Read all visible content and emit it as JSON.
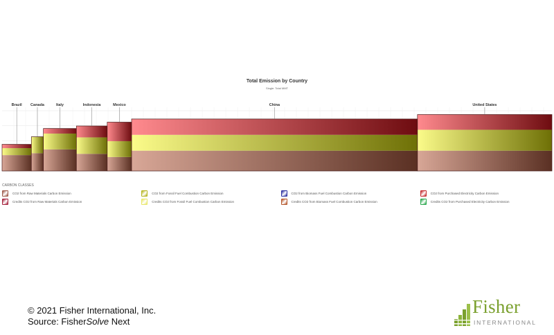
{
  "chart_data": {
    "type": "bar",
    "variant": "variable-width stacked (marimekko)",
    "title": "Total Emission by Country",
    "subtitle": "Single: Total MMT",
    "categories": [
      "Brazil",
      "Canada",
      "Italy",
      "Indonesia",
      "Mexico",
      "China",
      "United States"
    ],
    "widths": [
      9.5,
      3.9,
      10.7,
      10.0,
      7.9,
      92.7,
      43.6
    ],
    "series": [
      {
        "name": "CO2 from Raw Materials Carbon Emission",
        "values": [
          25,
          28,
          34,
          27,
          22,
          32,
          32
        ],
        "color": "#a9624f"
      },
      {
        "name": "CO2 from Fossil Fuel Combustion Carbon Emission",
        "values": [
          11,
          26,
          25,
          26,
          25,
          25,
          33
        ],
        "color": "#c8c81e"
      },
      {
        "name": "CO2 from Purchased Electricity Carbon Emission",
        "values": [
          6,
          0,
          8,
          18,
          30,
          25,
          24
        ],
        "color": "#c8202a"
      }
    ],
    "ylim": [
      0,
      95
    ],
    "grid": true,
    "legend_position": "bottom"
  },
  "legend": {
    "title": "CARBON CLASSES",
    "items": [
      {
        "label": "CO2 from Raw Materials Carbon Emission",
        "color": "#9e5a4a"
      },
      {
        "label": "CO2 from Fossil Fuel Combustion Carbon Emission",
        "color": "#b5b41c"
      },
      {
        "label": "CO2 from Biomass Fuel Combustion Carbon Emission",
        "color": "#2b2fa0"
      },
      {
        "label": "CO2 from Purchased Electricity Carbon Emission",
        "color": "#c32a2e"
      },
      {
        "label": "Credits CO2 from Raw Materials Carbon Emission",
        "color": "#a5223c"
      },
      {
        "label": "Credits CO2 from Fossil Fuel Combustion Carbon Emission",
        "color": "#e8e66a"
      },
      {
        "label": "Credits CO2 from Biomass Fuel Combustion Carbon Emission",
        "color": "#b4562a"
      },
      {
        "label": "Credits CO2 from Purchased Electricity Carbon Emission",
        "color": "#2aa84e"
      }
    ]
  },
  "footer": {
    "copyright": "© 2021 Fisher International, Inc.",
    "source_prefix": "Source: Fisher",
    "source_italic": "Solve",
    "source_suffix": " Next"
  },
  "logo": {
    "word": "Fisher",
    "sub": "INTERNATIONAL",
    "color": "#7aa02e"
  }
}
